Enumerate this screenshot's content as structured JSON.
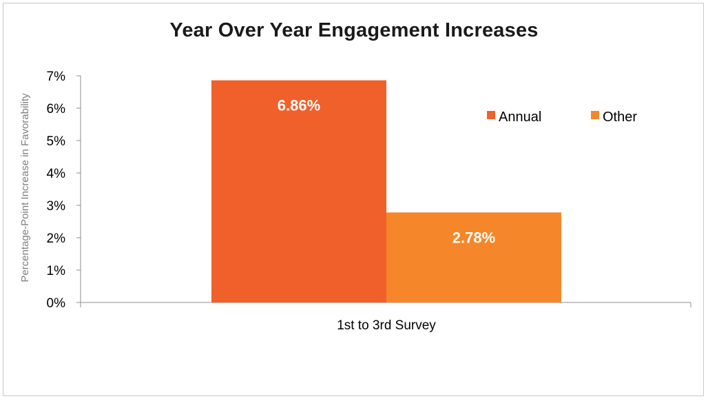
{
  "chart_data": {
    "type": "bar",
    "title": "Year Over Year Engagement Increases",
    "xlabel": "",
    "ylabel": "Percentage-Point Increase in Favorability",
    "categories": [
      "1st to 3rd Survey"
    ],
    "series": [
      {
        "name": "Annual",
        "values": [
          6.86
        ],
        "data_labels": [
          "6.86%"
        ],
        "color": "#f0602a"
      },
      {
        "name": "Other",
        "values": [
          2.78
        ],
        "data_labels": [
          "2.78%"
        ],
        "color": "#f5862a"
      }
    ],
    "ylim": [
      0,
      7
    ],
    "yticks": [
      0,
      1,
      2,
      3,
      4,
      5,
      6,
      7
    ],
    "ytick_labels": [
      "0%",
      "1%",
      "2%",
      "3%",
      "4%",
      "5%",
      "6%",
      "7%"
    ],
    "grid": false,
    "legend_position": "top-right"
  }
}
